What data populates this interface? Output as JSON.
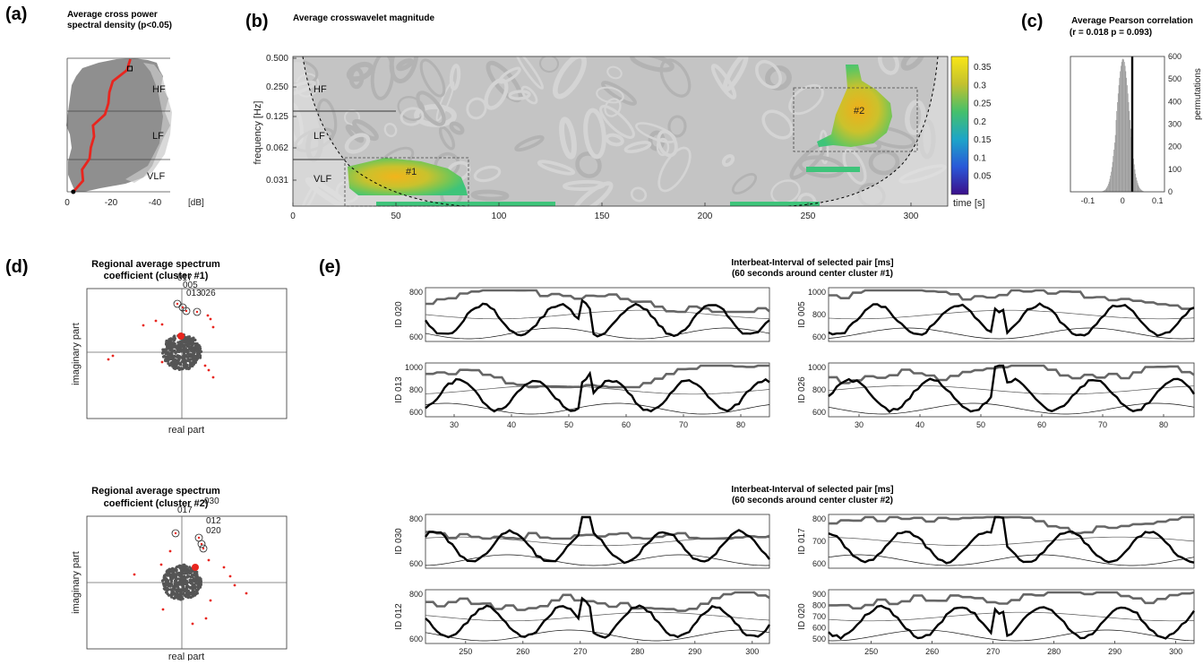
{
  "panels": {
    "a": {
      "label": "(a)",
      "title": [
        "Average cross power",
        "spectral density (p<0.05)"
      ],
      "xticks": [
        "0",
        "-20",
        "-40"
      ],
      "xunit": "[dB]",
      "regions": [
        "HF",
        "LF",
        "VLF"
      ],
      "accent": "#e8251e"
    },
    "b": {
      "label": "(b)",
      "title": "Average crosswavelet magnitude",
      "ylabel": "frequency [Hz]",
      "xunit": "time [s]",
      "yticks": [
        "0.500",
        "0.250",
        "0.125",
        "0.062",
        "0.031"
      ],
      "xticks": [
        "0",
        "50",
        "100",
        "150",
        "200",
        "250",
        "300"
      ],
      "regions": [
        "HF",
        "LF",
        "VLF"
      ],
      "clusters": [
        "#1",
        "#2"
      ],
      "colorbar_ticks": [
        "0.35",
        "0.3",
        "0.25",
        "0.2",
        "0.15",
        "0.1",
        "0.05"
      ]
    },
    "c": {
      "label": "(c)",
      "title": [
        "Average Pearson correlation",
        "(r = 0.018   p = 0.093)"
      ],
      "xticks": [
        "-0.1",
        "0",
        "0.1"
      ],
      "yticks": [
        "600",
        "500",
        "400",
        "300",
        "200",
        "100",
        "0"
      ],
      "ylabel": "permutations"
    },
    "d": {
      "label": "(d)",
      "top": {
        "title": [
          "Regional average spectrum",
          "coefficient (cluster #1)"
        ],
        "ids": [
          "017",
          "005",
          "013",
          "026"
        ]
      },
      "bottom": {
        "title": [
          "Regional average spectrum",
          "coefficient (cluster #2)"
        ],
        "ids": [
          "017",
          "030",
          "012",
          "020"
        ]
      },
      "xlabel": "real part",
      "ylabel": "imaginary part"
    },
    "e": {
      "label": "(e)",
      "top_title": [
        "Interbeat-Interval of selected pair [ms]",
        "(60 seconds around center cluster #1)"
      ],
      "bottom_title": [
        "Interbeat-Interval of selected pair [ms]",
        "(60 seconds around center cluster #2)"
      ],
      "top_xticks": [
        "30",
        "40",
        "50",
        "60",
        "70",
        "80"
      ],
      "bottom_xticks": [
        "250",
        "260",
        "270",
        "280",
        "290",
        "300"
      ],
      "subplots": {
        "t1": {
          "id": "ID 020",
          "yticks": [
            "800",
            "600"
          ]
        },
        "t2": {
          "id": "ID 005",
          "yticks": [
            "1000",
            "800",
            "600"
          ]
        },
        "t3": {
          "id": "ID 013",
          "yticks": [
            "1000",
            "800",
            "600"
          ]
        },
        "t4": {
          "id": "ID 026",
          "yticks": [
            "1000",
            "800",
            "600"
          ]
        },
        "b1": {
          "id": "ID 030",
          "yticks": [
            "800",
            "600"
          ]
        },
        "b2": {
          "id": "ID 017",
          "yticks": [
            "800",
            "700",
            "600"
          ]
        },
        "b3": {
          "id": "ID 012",
          "yticks": [
            "800",
            "600"
          ]
        },
        "b4": {
          "id": "ID 020",
          "yticks": [
            "900",
            "800",
            "700",
            "600",
            "500"
          ]
        }
      }
    }
  },
  "chart_data": [
    {
      "type": "line",
      "panel": "a",
      "xlabel": "[dB]",
      "xlim": [
        0,
        -45
      ],
      "series": [
        {
          "name": "",
          "values_db": [
            -30,
            -26,
            -22,
            -18,
            -20,
            -16,
            -13,
            -11,
            -12,
            -9,
            -8,
            -6,
            -4
          ]
        }
      ]
    },
    {
      "type": "heatmap",
      "panel": "b",
      "title": "Average crosswavelet magnitude",
      "xlabel": "time [s]",
      "ylabel": "frequency [Hz]",
      "xlim": [
        0,
        315
      ],
      "yticks": [
        0.5,
        0.25,
        0.125,
        0.062,
        0.031
      ],
      "colorbar_range": [
        0,
        0.38
      ],
      "clusters": [
        {
          "name": "#1",
          "time_range": [
            25,
            85
          ],
          "freq_band": "VLF",
          "peak": 0.36
        },
        {
          "name": "#2",
          "time_range": [
            243,
            303
          ],
          "freq_band": "LF/HF",
          "peak": 0.36
        }
      ]
    },
    {
      "type": "bar",
      "panel": "c",
      "title": "Average Pearson correlation",
      "xlim": [
        -0.15,
        0.12
      ],
      "ylim": [
        0,
        600
      ],
      "observed_r": 0.018,
      "p": 0.093
    },
    {
      "type": "scatter",
      "panel": "d",
      "xlabel": "real part",
      "ylabel": "imaginary part",
      "clusters": [
        {
          "name": "cluster #1",
          "labeled_points": [
            "017",
            "005",
            "013",
            "026"
          ]
        },
        {
          "name": "cluster #2",
          "labeled_points": [
            "017",
            "030",
            "012",
            "020"
          ]
        }
      ]
    },
    {
      "type": "line",
      "panel": "e",
      "top_xlim": [
        25,
        85
      ],
      "bottom_xlim": [
        243,
        303
      ],
      "subplots": [
        "ID 020",
        "ID 005",
        "ID 013",
        "ID 026",
        "ID 030",
        "ID 017",
        "ID 012",
        "ID 020"
      ]
    }
  ]
}
